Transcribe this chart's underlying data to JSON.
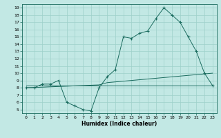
{
  "xlabel": "Humidex (Indice chaleur)",
  "xlim": [
    -0.5,
    23.5
  ],
  "ylim": [
    4.5,
    19.5
  ],
  "xticks": [
    0,
    1,
    2,
    3,
    4,
    5,
    6,
    7,
    8,
    9,
    10,
    11,
    12,
    13,
    14,
    15,
    16,
    17,
    18,
    19,
    20,
    21,
    22,
    23
  ],
  "yticks": [
    5,
    6,
    7,
    8,
    9,
    10,
    11,
    12,
    13,
    14,
    15,
    16,
    17,
    18,
    19
  ],
  "bg_color": "#c2e8e4",
  "line_color": "#1a6b5e",
  "grid_color": "#9dd0ca",
  "humidex": [
    8,
    8,
    8.5,
    8.5,
    9,
    6,
    5.5,
    5,
    4.8,
    8,
    9.5,
    10.5,
    15,
    14.8,
    15.5,
    15.8,
    17.5,
    19,
    18,
    17,
    15,
    13,
    10,
    8.3
  ],
  "trend_flat": [
    8.3,
    8.3,
    8.3,
    8.3,
    8.3,
    8.3,
    8.3,
    8.3,
    8.3,
    8.3,
    8.3,
    8.3,
    8.3,
    8.3,
    8.3,
    8.3,
    8.3,
    8.3,
    8.3,
    8.3,
    8.3,
    8.3,
    8.3,
    8.3
  ],
  "trend_rise": [
    8.0,
    8.04,
    8.08,
    8.13,
    8.17,
    8.21,
    8.26,
    8.3,
    8.35,
    8.39,
    8.7,
    8.8,
    8.9,
    9.0,
    9.1,
    9.2,
    9.3,
    9.4,
    9.5,
    9.6,
    9.7,
    9.8,
    9.9,
    10.0
  ]
}
